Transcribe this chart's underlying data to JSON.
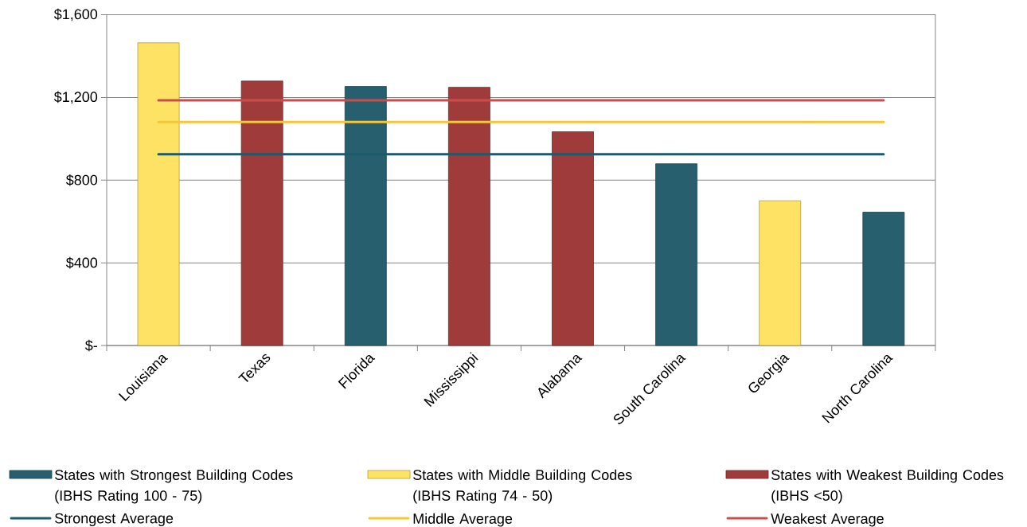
{
  "chart_data": {
    "type": "bar",
    "categories": [
      "Louisiana",
      "Texas",
      "Florida",
      "Mississippi",
      "Alabama",
      "South Carolina",
      "Georgia",
      "North Carolina"
    ],
    "series": [
      {
        "name": "States with Strongest Building Codes (IBHS Rating 100 - 75)",
        "color": "#275f6f",
        "values": [
          null,
          null,
          1253,
          null,
          null,
          879,
          null,
          645
        ]
      },
      {
        "name": "States with Middle Building Codes (IBHS Rating 74 - 50)",
        "color": "#fde263",
        "values": [
          1464,
          null,
          null,
          null,
          null,
          null,
          700,
          null
        ]
      },
      {
        "name": "States with Weakest Building Codes (IBHS <50)",
        "color": "#9f3c3b",
        "values": [
          null,
          1279,
          null,
          1249,
          1034,
          null,
          null,
          null
        ]
      },
      {
        "name": "Strongest Average",
        "type": "line",
        "color": "#1d5a6a",
        "values": [
          925,
          925,
          925,
          925,
          925,
          925,
          925,
          925
        ]
      },
      {
        "name": "Middle Average",
        "type": "line",
        "color": "#f5c53a",
        "values": [
          1081,
          1081,
          1081,
          1081,
          1081,
          1081,
          1081,
          1081
        ]
      },
      {
        "name": "Weakest Average",
        "type": "line",
        "color": "#c84e4c",
        "values": [
          1186,
          1186,
          1186,
          1186,
          1186,
          1186,
          1186,
          1186
        ]
      }
    ],
    "ylim": [
      0,
      1600
    ],
    "yticks": [
      {
        "value": 0,
        "label": "$-"
      },
      {
        "value": 400,
        "label": "$400"
      },
      {
        "value": 800,
        "label": "$800"
      },
      {
        "value": 1200,
        "label": "$1,200"
      },
      {
        "value": 1600,
        "label": "$1,600"
      }
    ],
    "grid": "y",
    "legend": "bottom"
  }
}
